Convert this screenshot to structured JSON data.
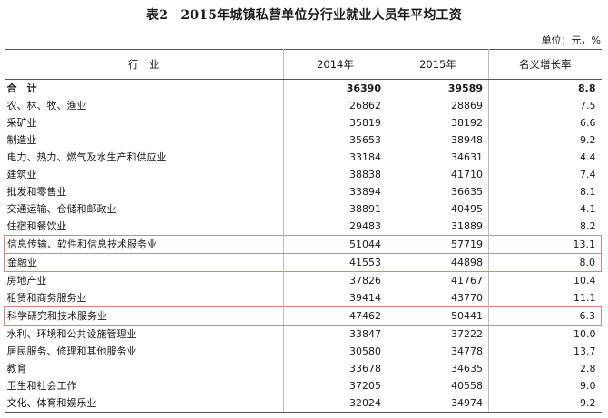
{
  "title": "表2　2015年城镇私营单位分行业就业人员年平均工资",
  "unit": "单位：元，%",
  "headers": [
    "行　业",
    "2014年",
    "2015年",
    "名义增长率"
  ],
  "rows": [
    {
      "name": "合　计",
      "y2014": "36390",
      "y2015": "39589",
      "growth": "8.8"
    },
    {
      "name": "农、林、牧、渔业",
      "y2014": "26862",
      "y2015": "28869",
      "growth": "7.5"
    },
    {
      "name": "采矿业",
      "y2014": "35819",
      "y2015": "38192",
      "growth": "6.6"
    },
    {
      "name": "制造业",
      "y2014": "35653",
      "y2015": "38948",
      "growth": "9.2"
    },
    {
      "name": "电力、热力、燃气及水生产和供应业",
      "y2014": "33184",
      "y2015": "34631",
      "growth": "4.4"
    },
    {
      "name": "建筑业",
      "y2014": "38838",
      "y2015": "41710",
      "growth": "7.4"
    },
    {
      "name": "批发和零售业",
      "y2014": "33894",
      "y2015": "36635",
      "growth": "8.1"
    },
    {
      "name": "交通运输、仓储和邮政业",
      "y2014": "38891",
      "y2015": "40495",
      "growth": "4.1"
    },
    {
      "name": "住宿和餐饮业",
      "y2014": "29483",
      "y2015": "31889",
      "growth": "8.2"
    },
    {
      "name": "信息传输、软件和信息技术服务业",
      "y2014": "51044",
      "y2015": "57719",
      "growth": "13.1"
    },
    {
      "name": "金融业",
      "y2014": "41553",
      "y2015": "44898",
      "growth": "8.0"
    },
    {
      "name": "房地产业",
      "y2014": "37826",
      "y2015": "41767",
      "growth": "10.4"
    },
    {
      "name": "租赁和商务服务业",
      "y2014": "39414",
      "y2015": "43770",
      "growth": "11.1"
    },
    {
      "name": "科学研究和技术服务业",
      "y2014": "47462",
      "y2015": "50441",
      "growth": "6.3"
    },
    {
      "name": "水利、环境和公共设施管理业",
      "y2014": "33847",
      "y2015": "37222",
      "growth": "10.0"
    },
    {
      "name": "居民服务、修理和其他服务业",
      "y2014": "30580",
      "y2015": "34778",
      "growth": "13.7"
    },
    {
      "name": "教育",
      "y2014": "33678",
      "y2015": "34635",
      "growth": "2.8"
    },
    {
      "name": "卫生和社会工作",
      "y2014": "37205",
      "y2015": "40558",
      "growth": "9.0"
    },
    {
      "name": "文化、体育和娱乐业",
      "y2014": "32024",
      "y2015": "34974",
      "growth": "9.2"
    }
  ],
  "highlight_color": "#e08080"
}
